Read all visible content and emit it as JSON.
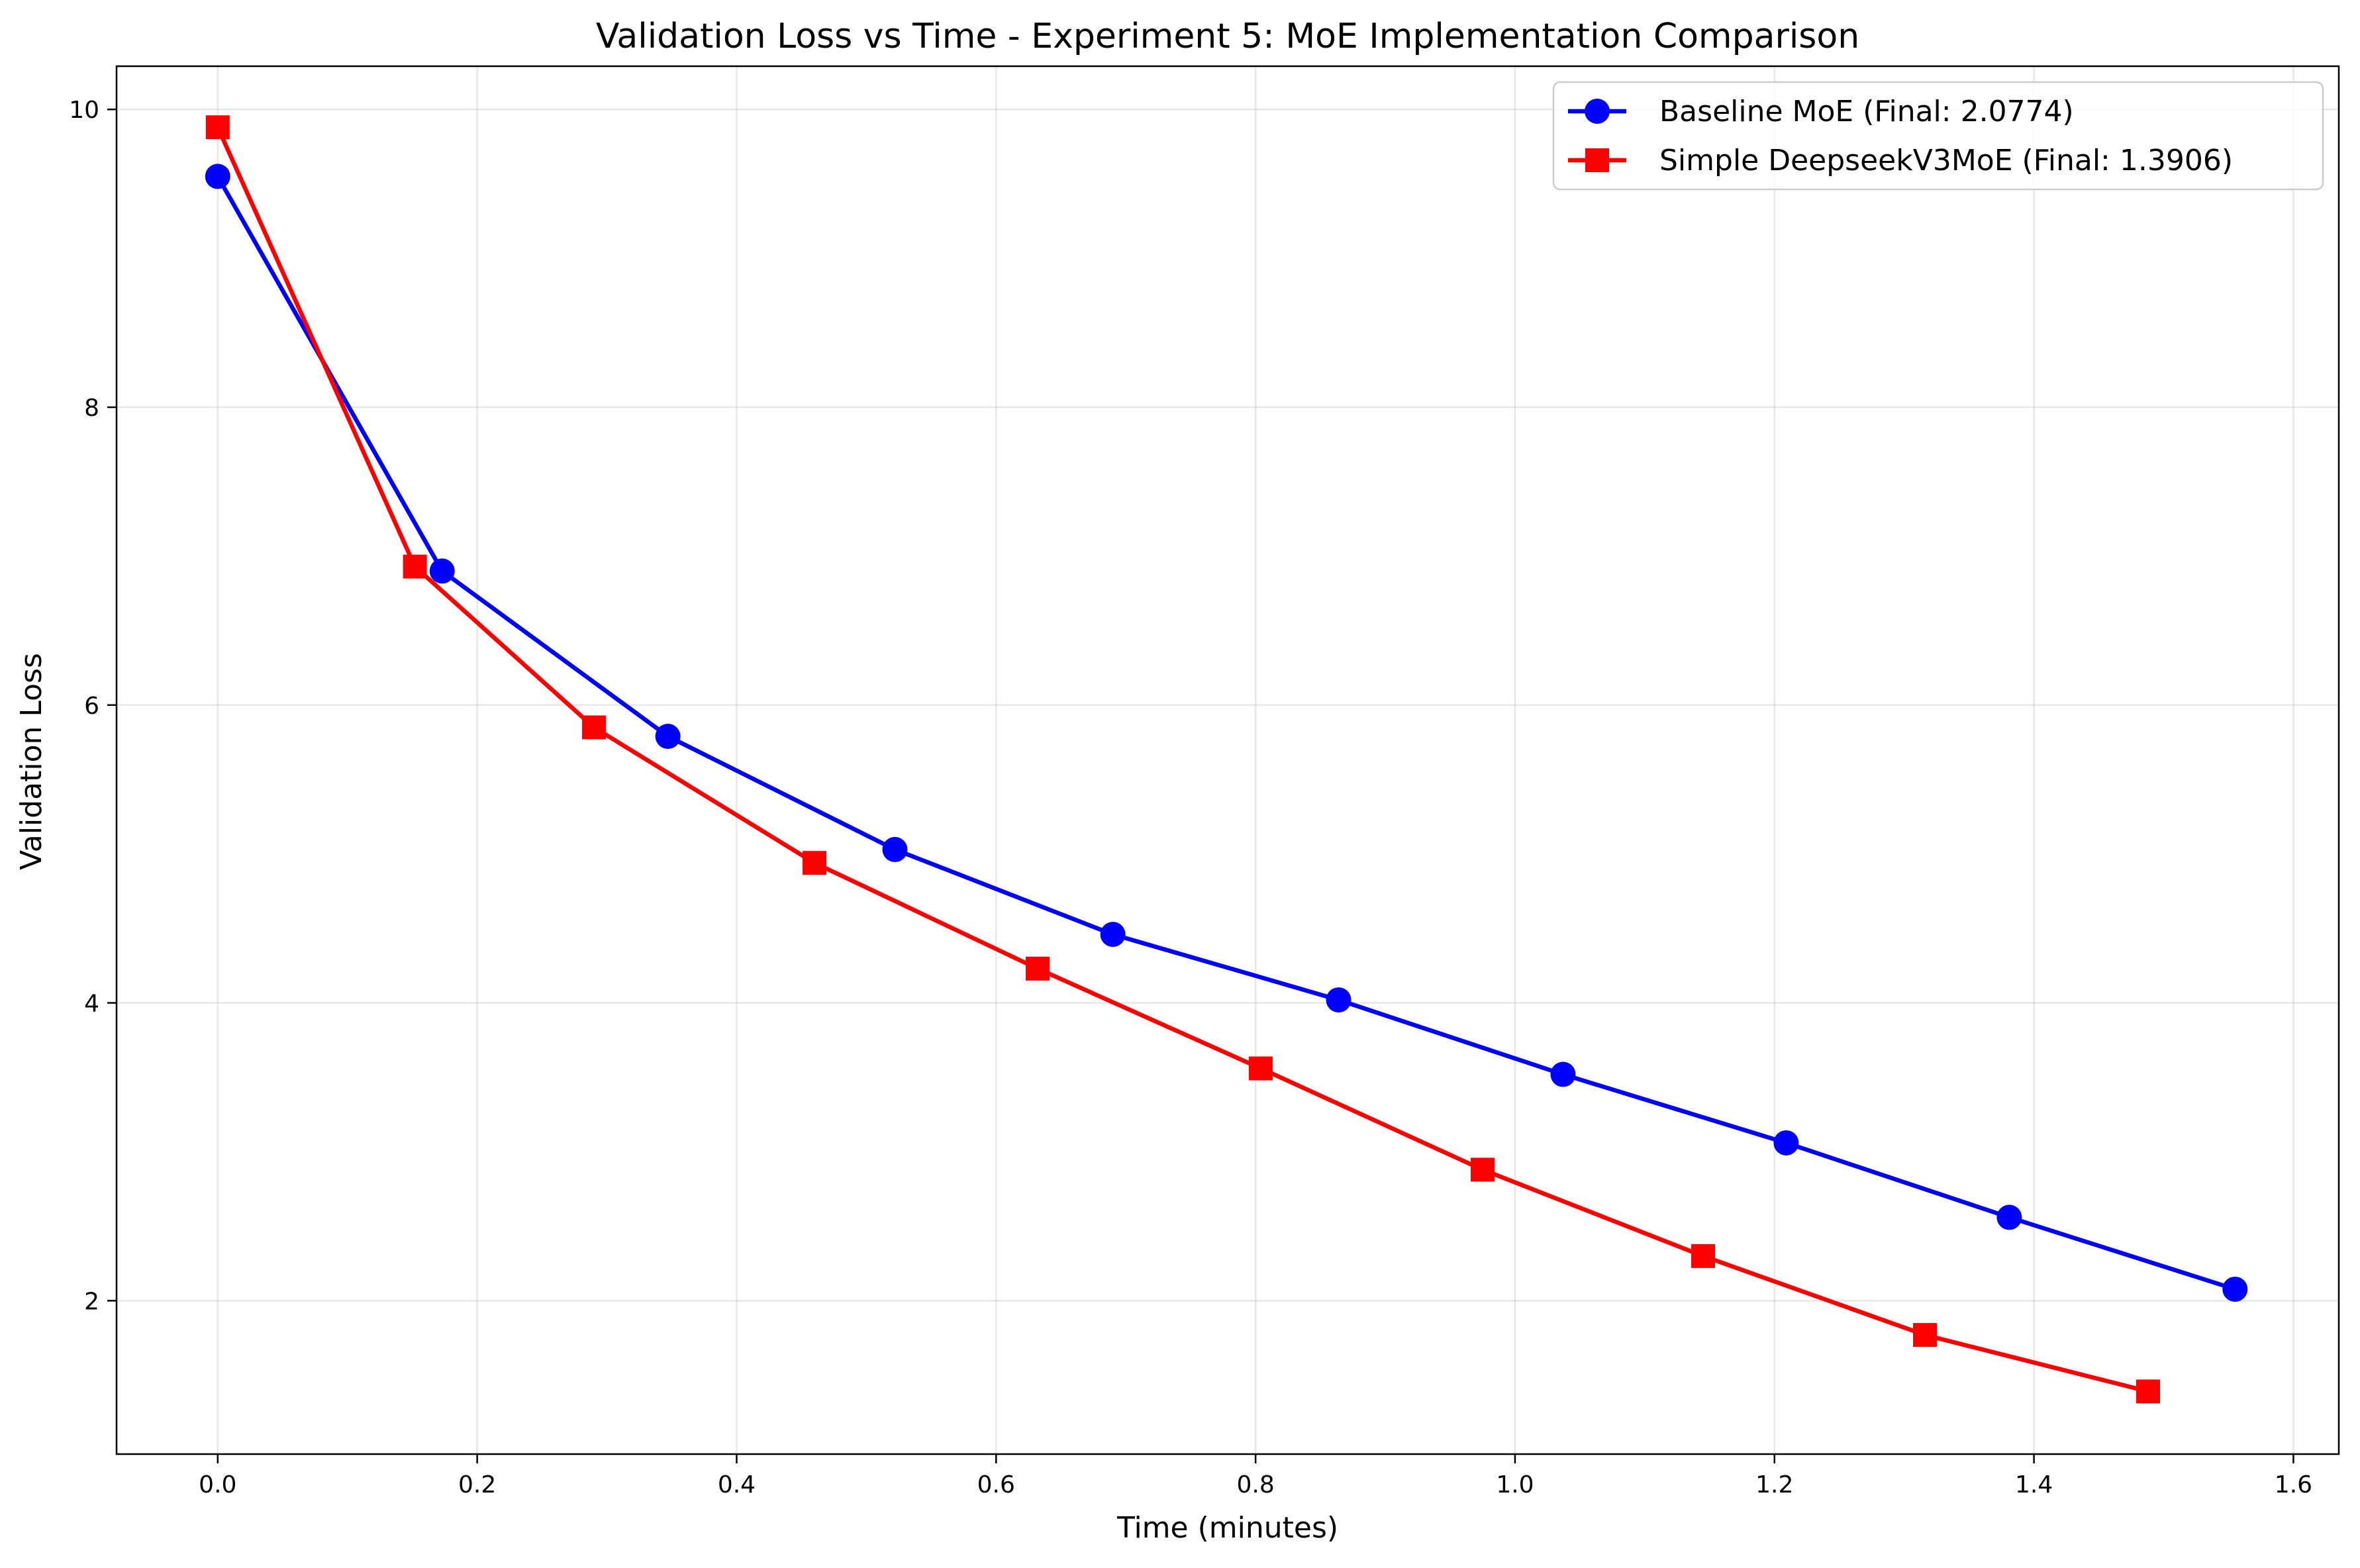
{
  "chart_data": {
    "type": "line",
    "title": "Validation Loss vs Time - Experiment 5: MoE Implementation Comparison",
    "xlabel": "Time (minutes)",
    "ylabel": "Validation Loss",
    "xlim": [
      -0.078,
      1.635
    ],
    "ylim": [
      0.97,
      10.29
    ],
    "xticks": [
      0.0,
      0.2,
      0.4,
      0.6,
      0.8,
      1.0,
      1.2,
      1.4,
      1.6
    ],
    "xtick_labels": [
      "0.0",
      "0.2",
      "0.4",
      "0.6",
      "0.8",
      "1.0",
      "1.2",
      "1.4",
      "1.6"
    ],
    "yticks": [
      2,
      4,
      6,
      8,
      10
    ],
    "ytick_labels": [
      "2",
      "4",
      "6",
      "8",
      "10"
    ],
    "grid": true,
    "legend_position": "top-right",
    "series": [
      {
        "name": "Baseline MoE (Final: 2.0774)",
        "color": "#0000ff",
        "marker": "circle",
        "x": [
          0.0,
          0.173,
          0.347,
          0.522,
          0.69,
          0.864,
          1.037,
          1.209,
          1.381,
          1.555
        ],
        "y": [
          9.55,
          6.9,
          5.79,
          5.03,
          4.46,
          4.02,
          3.52,
          3.06,
          2.56,
          2.0774
        ]
      },
      {
        "name": "Simple DeepseekV3MoE (Final: 1.3906)",
        "color": "#ff0000",
        "marker": "square",
        "x": [
          0.0,
          0.152,
          0.29,
          0.46,
          0.632,
          0.804,
          0.975,
          1.145,
          1.316,
          1.488
        ],
        "y": [
          9.88,
          6.93,
          5.85,
          4.94,
          4.23,
          3.56,
          2.88,
          2.3,
          1.77,
          1.3906
        ]
      }
    ]
  }
}
